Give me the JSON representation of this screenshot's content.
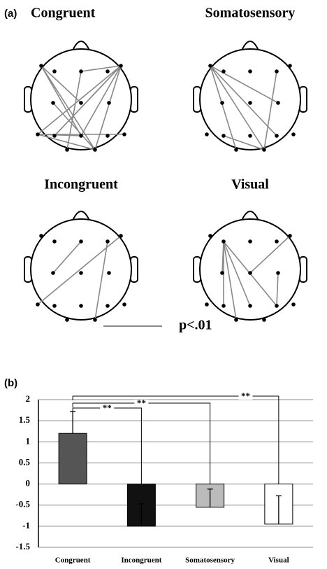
{
  "panel_a": {
    "label": "(a)",
    "heads": [
      "Congruent",
      "Somatosensory",
      "Incongruent",
      "Visual"
    ],
    "legend": "p<.01"
  },
  "chart_data": {
    "type": "bar",
    "panel_label": "(b)",
    "categories": [
      "Congruent",
      "Incongruent",
      "Somatosensory",
      "Visual"
    ],
    "values": [
      1.2,
      -1.0,
      -0.55,
      -0.95
    ],
    "errors": [
      0.52,
      0.53,
      0.43,
      0.67
    ],
    "colors": [
      "#555555",
      "#111111",
      "#bbbbbb",
      "#ffffff"
    ],
    "ylim": [
      -1.5,
      2
    ],
    "yticks": [
      2,
      1.5,
      1,
      0.5,
      0,
      -0.5,
      -1,
      -1.5
    ],
    "grid": true,
    "annotations": [
      "**",
      "**",
      "**"
    ]
  }
}
